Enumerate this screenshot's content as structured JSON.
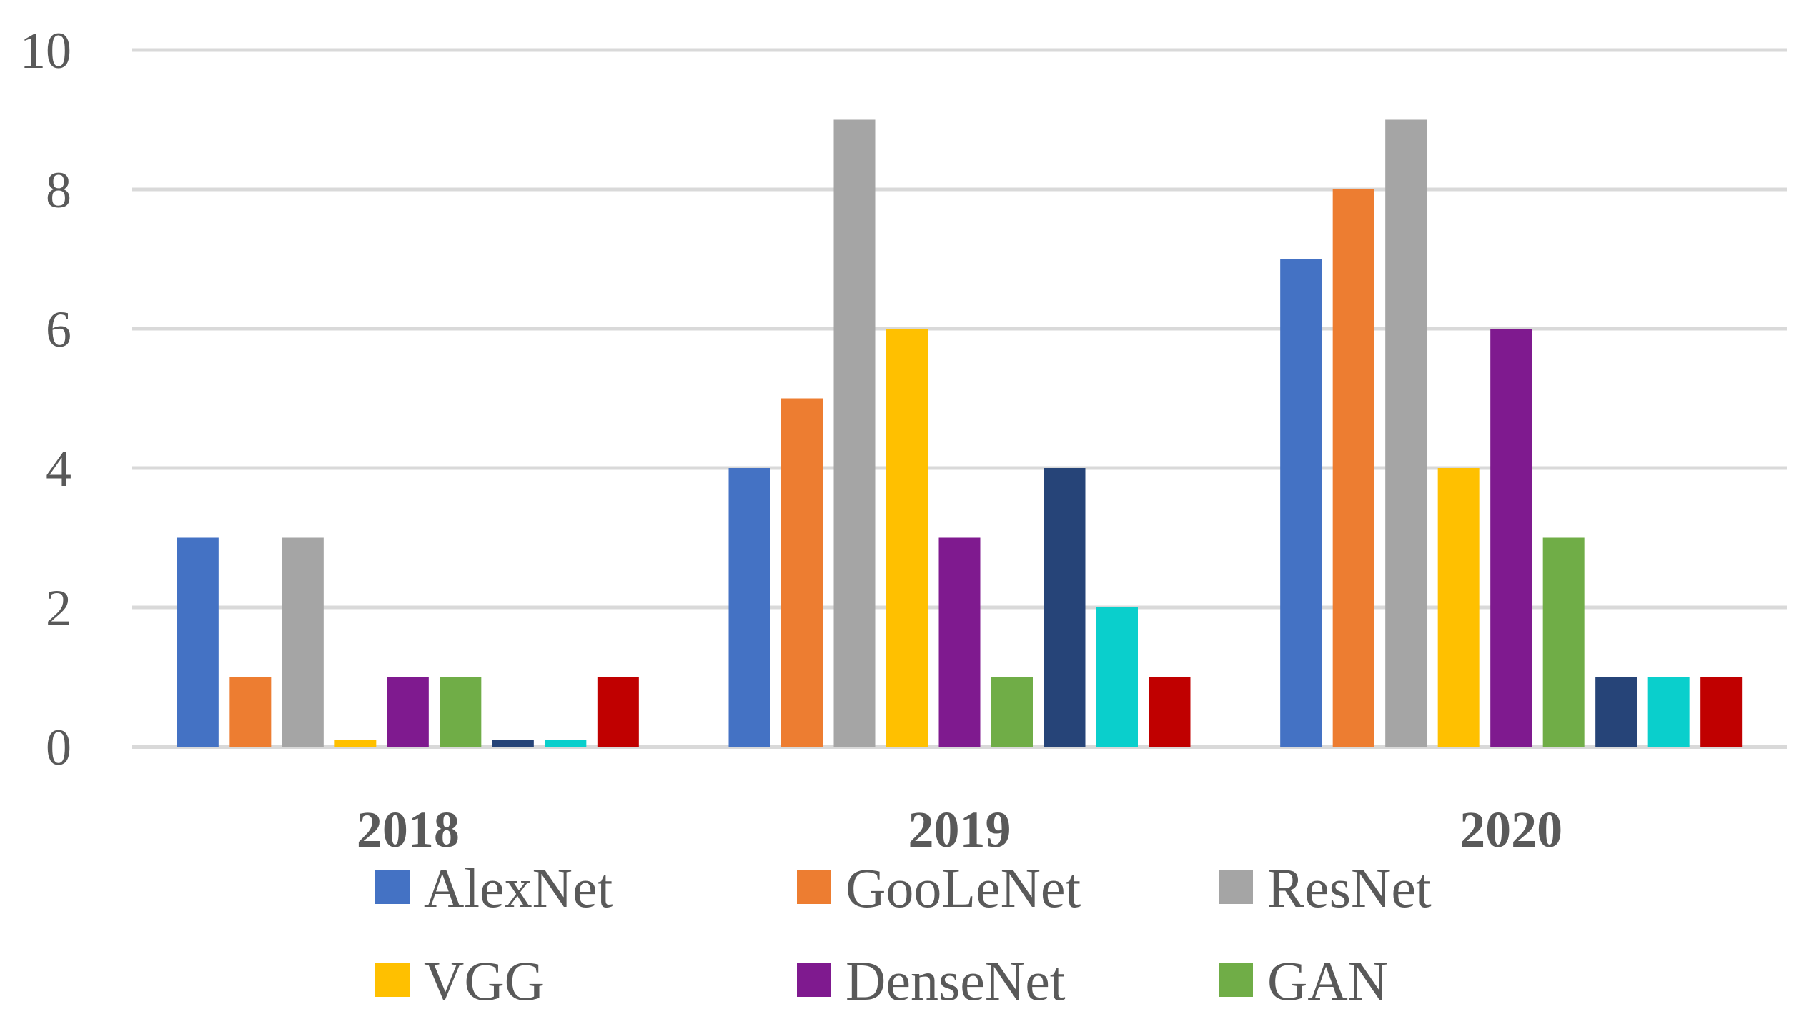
{
  "chart_data": {
    "type": "bar",
    "title": "",
    "xlabel": "",
    "ylabel": "",
    "categories": [
      "2018",
      "2019",
      "2020"
    ],
    "ylim": [
      0,
      10
    ],
    "yticks": [
      0,
      2,
      4,
      6,
      8,
      10
    ],
    "grid": true,
    "legend_position": "bottom",
    "series": [
      {
        "name": "AlexNet",
        "color": "#4472C4",
        "values": [
          3,
          4,
          7
        ]
      },
      {
        "name": "GooLeNet",
        "color": "#ED7D31",
        "values": [
          1,
          5,
          8
        ]
      },
      {
        "name": "ResNet",
        "color": "#A5A5A5",
        "values": [
          3,
          9,
          9
        ]
      },
      {
        "name": "VGG",
        "color": "#FFC000",
        "values": [
          0.1,
          6,
          4
        ]
      },
      {
        "name": "DenseNet",
        "color": "#7F1A8F",
        "values": [
          1,
          3,
          6
        ]
      },
      {
        "name": "GAN",
        "color": "#70AD47",
        "values": [
          1,
          1,
          3
        ]
      },
      {
        "name": "",
        "color": "#264478",
        "values": [
          0.1,
          4,
          1
        ]
      },
      {
        "name": "",
        "color": "#0ACFCC",
        "values": [
          0.1,
          2,
          1
        ]
      },
      {
        "name": "",
        "color": "#C00000",
        "values": [
          1,
          1,
          1
        ]
      }
    ]
  }
}
